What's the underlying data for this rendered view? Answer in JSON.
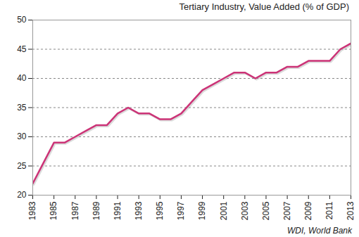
{
  "chart_data": {
    "type": "line",
    "title": "Tertiary Industry, Value Added (% of GDP)",
    "caption": "WDI, World Bank",
    "x": [
      1983,
      1984,
      1985,
      1986,
      1987,
      1988,
      1989,
      1990,
      1991,
      1992,
      1993,
      1994,
      1995,
      1996,
      1997,
      1998,
      1999,
      2000,
      2001,
      2002,
      2003,
      2004,
      2005,
      2006,
      2007,
      2008,
      2009,
      2010,
      2011,
      2012,
      2013
    ],
    "values": [
      22,
      25.5,
      29,
      29,
      30,
      31,
      32,
      32,
      34,
      35,
      34,
      34,
      33,
      33,
      34,
      36,
      38,
      39,
      40,
      41,
      41,
      40,
      41,
      41,
      42,
      42,
      43,
      43,
      43,
      45,
      46
    ],
    "color": "#cc3377",
    "xlim": [
      1983,
      2013
    ],
    "xticks": [
      1983,
      1985,
      1987,
      1989,
      1991,
      1993,
      1995,
      1997,
      1999,
      2001,
      2003,
      2005,
      2007,
      2009,
      2011,
      2013
    ],
    "ylim": [
      20,
      50
    ],
    "yticks": [
      20,
      25,
      30,
      35,
      40,
      45,
      50
    ],
    "grid": true
  }
}
